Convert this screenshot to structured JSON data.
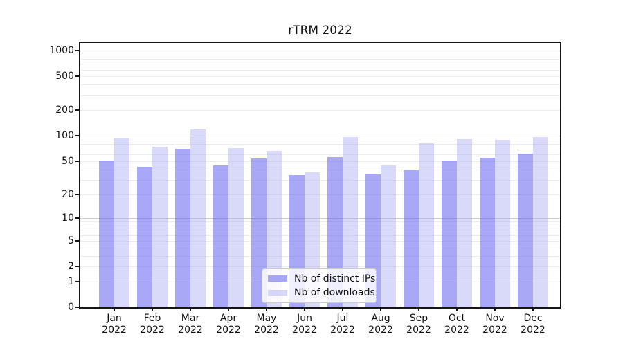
{
  "chart_data": {
    "type": "bar",
    "title": "rTRM 2022",
    "xlabel": "",
    "ylabel": "",
    "x_year": "2022",
    "categories": [
      "Jan",
      "Feb",
      "Mar",
      "Apr",
      "May",
      "Jun",
      "Jul",
      "Aug",
      "Sep",
      "Oct",
      "Nov",
      "Dec"
    ],
    "series": [
      {
        "name": "Nb of distinct IPs",
        "color": "rgba(100,100,240,0.56)",
        "values": [
          51,
          43,
          70,
          45,
          54,
          34,
          56,
          35,
          39,
          51,
          55,
          61
        ]
      },
      {
        "name": "Nb of downloads",
        "color": "rgba(165,165,240,0.42)",
        "values": [
          94,
          75,
          118,
          71,
          67,
          37,
          97,
          45,
          82,
          91,
          90,
          97
        ]
      }
    ],
    "yscale": "log1p",
    "ylim": [
      0,
      1230
    ],
    "yticks": [
      0,
      1,
      2,
      5,
      10,
      20,
      50,
      100,
      200,
      500,
      1000
    ],
    "major_grid_values": [
      1,
      10,
      100,
      1000
    ],
    "grid": true,
    "legend_position": "inside-bottom-center"
  }
}
